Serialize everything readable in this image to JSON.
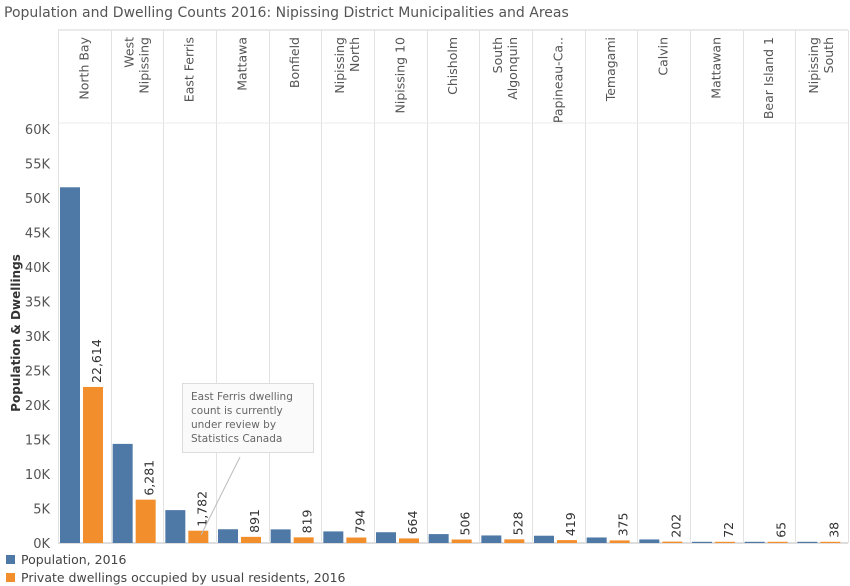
{
  "title": "Population and Dwelling Counts 2016: Nipissing District Municipalities and Areas",
  "chart_data": {
    "type": "bar",
    "title": "Population and Dwelling Counts 2016: Nipissing District Municipalities and Areas",
    "ylabel": "Population & Dwellings",
    "xlabel": "",
    "ylim": [
      0,
      60000
    ],
    "yticks": [
      0,
      5000,
      10000,
      15000,
      20000,
      25000,
      30000,
      35000,
      40000,
      45000,
      50000,
      55000,
      60000
    ],
    "ytick_labels": [
      "0K",
      "5K",
      "10K",
      "15K",
      "20K",
      "25K",
      "30K",
      "35K",
      "40K",
      "45K",
      "50K",
      "55K",
      "60K"
    ],
    "categories": [
      [
        "North Bay"
      ],
      [
        "West",
        "Nipissing"
      ],
      [
        "East Ferris"
      ],
      [
        "Mattawa"
      ],
      [
        "Bonfield"
      ],
      [
        "Nipissing",
        "North"
      ],
      [
        "Nipissing 10"
      ],
      [
        "Chisholm"
      ],
      [
        "South",
        "Algonquin"
      ],
      [
        "Papineau-Ca.."
      ],
      [
        "Temagami"
      ],
      [
        "Calvin"
      ],
      [
        "Mattawan"
      ],
      [
        "Bear Island 1"
      ],
      [
        "Nipissing",
        "South"
      ]
    ],
    "series": [
      {
        "name": "Population, 2016",
        "color": "#4e79a7",
        "values": [
          51553,
          14364,
          4766,
          1993,
          1975,
          1680,
          1560,
          1291,
          1096,
          1055,
          802,
          516,
          153,
          122,
          92
        ]
      },
      {
        "name": "Private dwellings occupied by usual residents, 2016",
        "color": "#f28e2b",
        "values": [
          22614,
          6281,
          1782,
          891,
          819,
          794,
          664,
          506,
          528,
          419,
          375,
          202,
          72,
          65,
          38
        ],
        "labels": [
          "22,614",
          "6,281",
          "1,782",
          "891",
          "819",
          "794",
          "664",
          "506",
          "528",
          "419",
          "375",
          "202",
          "72",
          "65",
          "38"
        ]
      }
    ],
    "annotation": "East Ferris dwelling count is currently under review by Statistics Canada",
    "grid": "vertical category separators",
    "legend_position": "bottom-left"
  }
}
